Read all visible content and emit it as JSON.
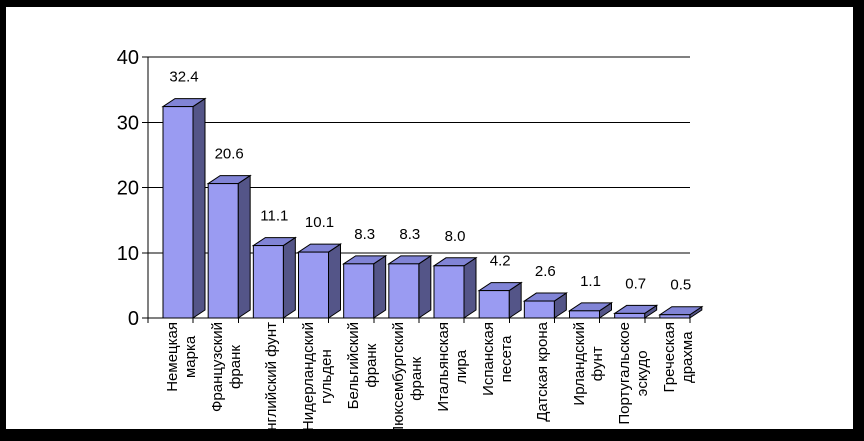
{
  "chart_data": {
    "type": "bar",
    "style": "3d-effect-clustered",
    "title": "",
    "xlabel": "",
    "ylabel": "",
    "legend": false,
    "grid": true,
    "ylim": [
      0,
      40
    ],
    "yticks": [
      0,
      10,
      20,
      30,
      40
    ],
    "ytick_labels": [
      "0",
      "10",
      "20",
      "30",
      "40"
    ],
    "categories": [
      {
        "label": "Немецкая марка",
        "lines": [
          "Немецкая",
          "марка"
        ]
      },
      {
        "label": "Французский франк",
        "lines": [
          "Французский",
          "франк"
        ]
      },
      {
        "label": "Английский фунт",
        "lines": [
          "Английский фунт"
        ]
      },
      {
        "label": "Нидерландский гульден",
        "lines": [
          "Нидерландский",
          "гульден"
        ]
      },
      {
        "label": "Бельгийский франк",
        "lines": [
          "Бельгийский",
          "франк"
        ]
      },
      {
        "label": "Люксембургский франк",
        "lines": [
          "Люксембургский",
          "франк"
        ]
      },
      {
        "label": "Итальянская лира",
        "lines": [
          "Итальянская",
          "лира"
        ]
      },
      {
        "label": "Испанская песета",
        "lines": [
          "Испанская",
          "песета"
        ]
      },
      {
        "label": "Датская крона",
        "lines": [
          "Датская крона"
        ]
      },
      {
        "label": "Ирландский фунт",
        "lines": [
          "Ирландский",
          "фунт"
        ]
      },
      {
        "label": "Португальское эскудо",
        "lines": [
          "Португальское",
          "эскудо"
        ]
      },
      {
        "label": "Греческая драхма",
        "lines": [
          "Греческая",
          "драхма"
        ]
      }
    ],
    "values": [
      32.4,
      20.6,
      11.1,
      10.1,
      8.3,
      8.3,
      8.0,
      4.2,
      2.6,
      1.1,
      0.7,
      0.5
    ],
    "value_labels": [
      "32.4",
      "20.6",
      "11.1",
      "10.1",
      "8.3",
      "8.3",
      "8.0",
      "4.2",
      "2.6",
      "1.1",
      "0.7",
      "0.5"
    ],
    "colors": {
      "bar_front": "#9A9BF2",
      "bar_top": "#8184D6",
      "bar_side": "#545588",
      "outline": "#000000",
      "axis": "#000000",
      "gridline": "#000000",
      "text": "#000000",
      "plot_background": "#FFFFFF",
      "frame_background": "#000000"
    }
  }
}
